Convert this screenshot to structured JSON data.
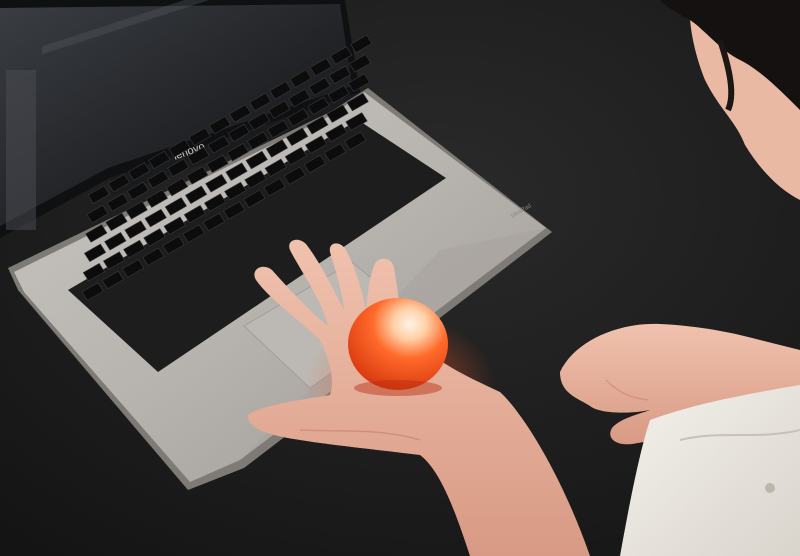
{
  "photo": {
    "laptop_brand": "lenovo",
    "palm_rest_badge": "IdeaPad"
  }
}
